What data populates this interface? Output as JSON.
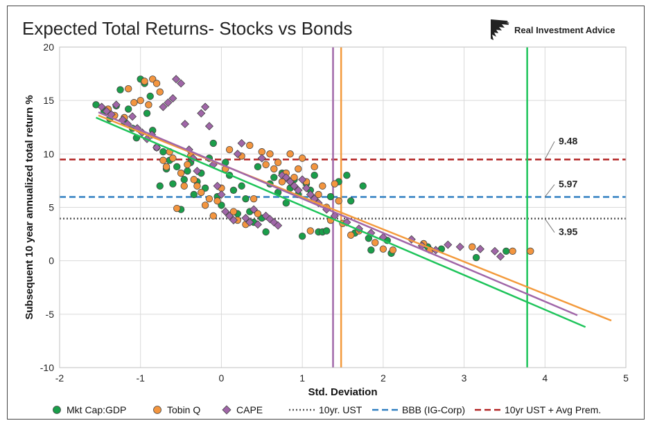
{
  "chart_data": {
    "type": "scatter",
    "title": "Expected Total Returns- Stocks vs Bonds",
    "brand": "Real Investment Advice",
    "brand_icon": "eagle-head-logo",
    "xlabel": "Std. Deviation",
    "ylabel": "Subsequent 10 year annualized total return %",
    "xlim": [
      -2,
      5
    ],
    "ylim": [
      -10,
      20
    ],
    "xticks": [
      -2,
      -1,
      0,
      1,
      2,
      3,
      4,
      5
    ],
    "yticks": [
      -10,
      -5,
      0,
      5,
      10,
      15,
      20
    ],
    "grid": true,
    "legend_position": "bottom",
    "series": [
      {
        "name": "Mkt Cap:GDP",
        "marker": "circle",
        "color": "#1a9e4a",
        "points": [
          [
            -1.55,
            14.6
          ],
          [
            -1.45,
            14.0
          ],
          [
            -1.38,
            13.3
          ],
          [
            -1.3,
            14.5
          ],
          [
            -1.25,
            16.0
          ],
          [
            -1.2,
            13.0
          ],
          [
            -1.15,
            14.2
          ],
          [
            -1.1,
            12.4
          ],
          [
            -1.05,
            11.5
          ],
          [
            -1.0,
            17.0
          ],
          [
            -0.95,
            16.6
          ],
          [
            -0.92,
            13.8
          ],
          [
            -0.88,
            15.4
          ],
          [
            -0.85,
            12.2
          ],
          [
            -0.8,
            10.6
          ],
          [
            -0.76,
            7.0
          ],
          [
            -0.72,
            10.2
          ],
          [
            -0.68,
            8.6
          ],
          [
            -0.64,
            9.4
          ],
          [
            -0.6,
            7.2
          ],
          [
            -0.55,
            8.8
          ],
          [
            -0.5,
            4.8
          ],
          [
            -0.46,
            7.6
          ],
          [
            -0.42,
            8.4
          ],
          [
            -0.38,
            9.2
          ],
          [
            -0.34,
            6.2
          ],
          [
            -0.3,
            7.4
          ],
          [
            -0.25,
            8.2
          ],
          [
            -0.2,
            6.8
          ],
          [
            -0.15,
            9.6
          ],
          [
            -0.1,
            11.0
          ],
          [
            -0.05,
            6.0
          ],
          [
            0.0,
            5.2
          ],
          [
            0.05,
            9.2
          ],
          [
            0.1,
            8.0
          ],
          [
            0.15,
            6.6
          ],
          [
            0.2,
            4.4
          ],
          [
            0.25,
            7.0
          ],
          [
            0.3,
            5.8
          ],
          [
            0.35,
            4.6
          ],
          [
            0.4,
            3.6
          ],
          [
            0.45,
            8.8
          ],
          [
            0.5,
            4.0
          ],
          [
            0.55,
            2.7
          ],
          [
            0.6,
            7.2
          ],
          [
            0.65,
            7.8
          ],
          [
            0.7,
            6.4
          ],
          [
            0.75,
            8.2
          ],
          [
            0.8,
            5.4
          ],
          [
            0.85,
            6.8
          ],
          [
            0.9,
            7.6
          ],
          [
            0.95,
            6.2
          ],
          [
            1.0,
            2.3
          ],
          [
            1.05,
            7.2
          ],
          [
            1.1,
            6.6
          ],
          [
            1.15,
            8.0
          ],
          [
            1.2,
            2.7
          ],
          [
            1.25,
            2.7
          ],
          [
            1.3,
            2.8
          ],
          [
            1.35,
            6.0
          ],
          [
            1.45,
            7.4
          ],
          [
            1.55,
            8.0
          ],
          [
            1.6,
            5.6
          ],
          [
            1.65,
            2.6
          ],
          [
            1.75,
            7.0
          ],
          [
            1.82,
            2.1
          ],
          [
            1.85,
            1.0
          ],
          [
            2.05,
            1.9
          ],
          [
            2.1,
            0.7
          ],
          [
            2.55,
            1.3
          ],
          [
            2.72,
            1.1
          ],
          [
            3.15,
            0.3
          ],
          [
            3.52,
            0.9
          ]
        ]
      },
      {
        "name": "Tobin Q",
        "marker": "circle",
        "color": "#f3953f",
        "points": [
          [
            -1.4,
            14.2
          ],
          [
            -1.32,
            13.6
          ],
          [
            -1.2,
            13.4
          ],
          [
            -1.15,
            16.1
          ],
          [
            -1.08,
            14.8
          ],
          [
            -1.0,
            15.0
          ],
          [
            -0.95,
            16.8
          ],
          [
            -0.9,
            14.6
          ],
          [
            -0.85,
            17.0
          ],
          [
            -0.8,
            16.6
          ],
          [
            -0.76,
            15.8
          ],
          [
            -0.72,
            9.4
          ],
          [
            -0.68,
            8.8
          ],
          [
            -0.64,
            10.2
          ],
          [
            -0.6,
            9.6
          ],
          [
            -0.55,
            4.9
          ],
          [
            -0.5,
            8.2
          ],
          [
            -0.46,
            7.0
          ],
          [
            -0.42,
            9.0
          ],
          [
            -0.38,
            9.8
          ],
          [
            -0.34,
            7.6
          ],
          [
            -0.3,
            7.0
          ],
          [
            -0.25,
            6.4
          ],
          [
            -0.2,
            5.2
          ],
          [
            -0.15,
            5.8
          ],
          [
            -0.1,
            4.2
          ],
          [
            -0.05,
            5.6
          ],
          [
            0.0,
            6.8
          ],
          [
            0.05,
            8.6
          ],
          [
            0.1,
            10.4
          ],
          [
            0.15,
            4.6
          ],
          [
            0.2,
            3.8
          ],
          [
            0.25,
            9.8
          ],
          [
            0.3,
            3.4
          ],
          [
            0.35,
            10.8
          ],
          [
            0.4,
            5.8
          ],
          [
            0.45,
            4.4
          ],
          [
            0.5,
            10.2
          ],
          [
            0.55,
            9.0
          ],
          [
            0.6,
            10.0
          ],
          [
            0.65,
            8.6
          ],
          [
            0.7,
            9.2
          ],
          [
            0.75,
            7.4
          ],
          [
            0.8,
            8.2
          ],
          [
            0.85,
            10.0
          ],
          [
            0.9,
            7.8
          ],
          [
            0.95,
            8.6
          ],
          [
            1.0,
            9.6
          ],
          [
            1.05,
            7.4
          ],
          [
            1.1,
            2.8
          ],
          [
            1.15,
            8.8
          ],
          [
            1.2,
            6.2
          ],
          [
            1.25,
            7.0
          ],
          [
            1.3,
            5.0
          ],
          [
            1.35,
            3.8
          ],
          [
            1.4,
            7.2
          ],
          [
            1.45,
            5.6
          ],
          [
            1.5,
            3.5
          ],
          [
            1.6,
            2.4
          ],
          [
            1.7,
            2.8
          ],
          [
            1.9,
            1.7
          ],
          [
            2.0,
            1.1
          ],
          [
            2.12,
            1.0
          ],
          [
            2.5,
            1.6
          ],
          [
            2.58,
            1.0
          ],
          [
            3.1,
            1.3
          ],
          [
            3.6,
            0.9
          ],
          [
            3.82,
            0.9
          ]
        ]
      },
      {
        "name": "CAPE",
        "marker": "diamond",
        "color": "#a066a8",
        "points": [
          [
            -1.48,
            14.4
          ],
          [
            -1.42,
            14.0
          ],
          [
            -1.36,
            13.7
          ],
          [
            -1.3,
            14.6
          ],
          [
            -1.22,
            13.2
          ],
          [
            -1.16,
            12.8
          ],
          [
            -1.1,
            13.5
          ],
          [
            -1.04,
            12.4
          ],
          [
            -0.98,
            12.0
          ],
          [
            -0.92,
            11.4
          ],
          [
            -0.86,
            11.8
          ],
          [
            -0.8,
            10.6
          ],
          [
            -0.72,
            14.4
          ],
          [
            -0.66,
            14.8
          ],
          [
            -0.6,
            15.2
          ],
          [
            -0.56,
            17.0
          ],
          [
            -0.5,
            16.6
          ],
          [
            -0.45,
            12.8
          ],
          [
            -0.4,
            10.4
          ],
          [
            -0.35,
            9.6
          ],
          [
            -0.3,
            8.4
          ],
          [
            -0.25,
            13.8
          ],
          [
            -0.2,
            14.4
          ],
          [
            -0.15,
            12.6
          ],
          [
            -0.1,
            9.0
          ],
          [
            -0.05,
            7.0
          ],
          [
            0.0,
            6.2
          ],
          [
            0.05,
            4.6
          ],
          [
            0.1,
            4.2
          ],
          [
            0.15,
            3.8
          ],
          [
            0.2,
            10.0
          ],
          [
            0.25,
            11.0
          ],
          [
            0.3,
            4.0
          ],
          [
            0.35,
            3.6
          ],
          [
            0.4,
            4.8
          ],
          [
            0.45,
            3.4
          ],
          [
            0.5,
            9.6
          ],
          [
            0.55,
            4.2
          ],
          [
            0.6,
            3.9
          ],
          [
            0.65,
            3.6
          ],
          [
            0.7,
            3.3
          ],
          [
            0.75,
            8.0
          ],
          [
            0.8,
            7.8
          ],
          [
            0.85,
            7.4
          ],
          [
            0.9,
            7.0
          ],
          [
            0.95,
            6.6
          ],
          [
            1.0,
            7.6
          ],
          [
            1.05,
            6.8
          ],
          [
            1.1,
            6.2
          ],
          [
            1.15,
            5.8
          ],
          [
            1.2,
            5.4
          ],
          [
            1.3,
            4.8
          ],
          [
            1.4,
            4.2
          ],
          [
            1.55,
            3.6
          ],
          [
            1.7,
            3.0
          ],
          [
            1.85,
            2.6
          ],
          [
            2.0,
            2.2
          ],
          [
            2.35,
            2.0
          ],
          [
            2.48,
            1.4
          ],
          [
            2.65,
            1.0
          ],
          [
            2.8,
            1.5
          ],
          [
            2.95,
            1.3
          ],
          [
            3.2,
            1.1
          ],
          [
            3.38,
            0.9
          ],
          [
            3.45,
            0.4
          ]
        ]
      }
    ],
    "trendlines": [
      {
        "series": "Mkt Cap:GDP",
        "color": "#1ec45a",
        "x": [
          -1.55,
          4.5
        ],
        "y": [
          13.4,
          -6.2
        ]
      },
      {
        "series": "Tobin Q",
        "color": "#f39a3c",
        "x": [
          -1.52,
          4.82
        ],
        "y": [
          13.6,
          -5.6
        ]
      },
      {
        "series": "CAPE",
        "color": "#a066a8",
        "x": [
          -1.52,
          4.4
        ],
        "y": [
          13.9,
          -5.1
        ]
      }
    ],
    "hlines": [
      {
        "name": "10yr. UST",
        "value": 3.95,
        "label": "3.95",
        "color": "#555555",
        "style": "dotted"
      },
      {
        "name": "BBB (IG-Corp)",
        "value": 5.97,
        "label": "5.97",
        "color": "#2f7fc1",
        "style": "dashed"
      },
      {
        "name": "10yr UST + Avg Prem.",
        "value": 9.48,
        "label": "9.48",
        "color": "#b22222",
        "style": "dashed"
      }
    ],
    "vlines": [
      {
        "x": 1.38,
        "color": "#a066a8"
      },
      {
        "x": 1.48,
        "color": "#f39a3c"
      },
      {
        "x": 3.78,
        "color": "#1ec45a"
      }
    ]
  }
}
